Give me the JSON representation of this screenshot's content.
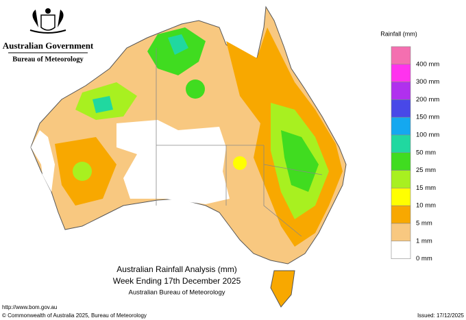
{
  "header": {
    "government": "Australian Government",
    "bureau": "Bureau of Meteorology"
  },
  "legend": {
    "title": "Rainfall (mm)",
    "swatches": [
      "#f46fb0",
      "#ff33ee",
      "#b030ee",
      "#4848e8",
      "#14a8f0",
      "#20d8a0",
      "#40dc20",
      "#a8f020",
      "#ffff00",
      "#f8a800",
      "#f8c880",
      "#ffffff"
    ],
    "labels": [
      "400 mm",
      "300 mm",
      "200 mm",
      "150 mm",
      "100 mm",
      "50 mm",
      "25 mm",
      "15 mm",
      "10 mm",
      "5 mm",
      "1 mm",
      "0 mm"
    ]
  },
  "title": {
    "line1": "Australian Rainfall Analysis (mm)",
    "line2": "Week Ending 17th December 2025",
    "line3": "Australian Bureau of Meteorology"
  },
  "footer": {
    "url": "http://www.bom.gov.au",
    "copyright": "© Commonwealth of Australia 2025, Bureau of Meteorology",
    "issued": "Issued: 17/12/2025"
  }
}
